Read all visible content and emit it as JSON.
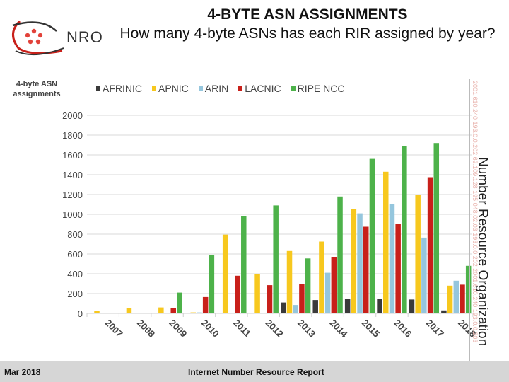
{
  "header": {
    "logo_text": "NRO",
    "title": "4-BYTE ASN ASSIGNMENTS",
    "subtitle": "How many 4-byte ASNs has each RIR assigned by year?"
  },
  "side_band": {
    "org_name": "Number Resource Organization",
    "ip_text": "2001:610:240 193.0.0.202 62.109.128 195.048.02.03 193.0.0.202 2001:610:240 193.0.0.203"
  },
  "footer": {
    "date": "Mar 2018",
    "report": "Internet Number Resource Report"
  },
  "colors": {
    "AFRINIC": "#3a3a3a",
    "APNIC": "#f7c81e",
    "ARIN": "#95c6dd",
    "LACNIC": "#c8201a",
    "RIPE NCC": "#4db24a",
    "grid": "#d9d9d9",
    "axis_text": "#444444"
  },
  "chart_data": {
    "type": "bar",
    "title": "4-BYTE ASN ASSIGNMENTS",
    "subtitle": "How many 4-byte ASNs has each RIR assigned by year?",
    "xlabel": "",
    "ylabel": "4-byte ASN assignments",
    "ylim": [
      0,
      2000
    ],
    "yticks": [
      0,
      200,
      400,
      600,
      800,
      1000,
      1200,
      1400,
      1600,
      1800,
      2000
    ],
    "grid": true,
    "legend_position": "top",
    "categories": [
      "2007",
      "2008",
      "2009",
      "2010",
      "2011",
      "2012",
      "2013",
      "2014",
      "2015",
      "2016",
      "2017",
      "2018"
    ],
    "series": [
      {
        "name": "AFRINIC",
        "values": [
          0,
          0,
          3,
          5,
          3,
          5,
          110,
          135,
          150,
          145,
          140,
          30
        ]
      },
      {
        "name": "APNIC",
        "values": [
          25,
          50,
          60,
          10,
          795,
          400,
          630,
          725,
          1055,
          1430,
          1195,
          280
        ]
      },
      {
        "name": "ARIN",
        "values": [
          0,
          3,
          0,
          10,
          0,
          0,
          85,
          410,
          1010,
          1100,
          765,
          330
        ]
      },
      {
        "name": "LACNIC",
        "values": [
          0,
          3,
          50,
          165,
          380,
          285,
          295,
          565,
          875,
          905,
          1375,
          290
        ]
      },
      {
        "name": "RIPE NCC",
        "values": [
          0,
          0,
          210,
          590,
          985,
          1090,
          555,
          1180,
          1560,
          1690,
          1720,
          480
        ]
      }
    ]
  }
}
